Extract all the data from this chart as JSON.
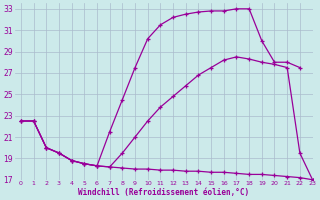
{
  "xlabel": "Windchill (Refroidissement éolien,°C)",
  "bg_color": "#cceaea",
  "grid_color": "#aabbcc",
  "line_color": "#990099",
  "marker": "+",
  "xlim": [
    -0.5,
    23
  ],
  "ylim": [
    17,
    33.5
  ],
  "xticks": [
    0,
    1,
    2,
    3,
    4,
    5,
    6,
    7,
    8,
    9,
    10,
    11,
    12,
    13,
    14,
    15,
    16,
    17,
    18,
    19,
    20,
    21,
    22,
    23
  ],
  "yticks": [
    17,
    19,
    21,
    23,
    25,
    27,
    29,
    31,
    33
  ],
  "series1_x": [
    0,
    1,
    2,
    3,
    4,
    5,
    6,
    7,
    8,
    9,
    10,
    11,
    12,
    13,
    14,
    15,
    16,
    17,
    18,
    19,
    20,
    21,
    22
  ],
  "series1_y": [
    22.5,
    22.5,
    20.0,
    19.5,
    18.8,
    18.5,
    18.3,
    21.5,
    24.5,
    27.5,
    30.2,
    31.5,
    32.2,
    32.5,
    32.7,
    32.8,
    32.8,
    33.0,
    33.0,
    30.0,
    28.0,
    28.0,
    27.5
  ],
  "series2_x": [
    0,
    1,
    2,
    3,
    4,
    5,
    6,
    7,
    8,
    9,
    10,
    11,
    12,
    13,
    14,
    15,
    16,
    17,
    18,
    19,
    20,
    21,
    22,
    23
  ],
  "series2_y": [
    22.5,
    22.5,
    20.0,
    19.5,
    18.8,
    18.5,
    18.3,
    18.2,
    18.1,
    18.0,
    18.0,
    17.9,
    17.9,
    17.8,
    17.8,
    17.7,
    17.7,
    17.6,
    17.5,
    17.5,
    17.4,
    17.3,
    17.2,
    17.0
  ],
  "series3_x": [
    0,
    1,
    2,
    3,
    4,
    5,
    6,
    7,
    8,
    9,
    10,
    11,
    12,
    13,
    14,
    15,
    16,
    17,
    18,
    19,
    20,
    21,
    22,
    23
  ],
  "series3_y": [
    22.5,
    22.5,
    20.0,
    19.5,
    18.8,
    18.5,
    18.3,
    18.2,
    19.5,
    21.0,
    22.5,
    23.8,
    24.8,
    25.8,
    26.8,
    27.5,
    28.2,
    28.5,
    28.3,
    28.0,
    27.8,
    27.5,
    19.5,
    17.0
  ]
}
